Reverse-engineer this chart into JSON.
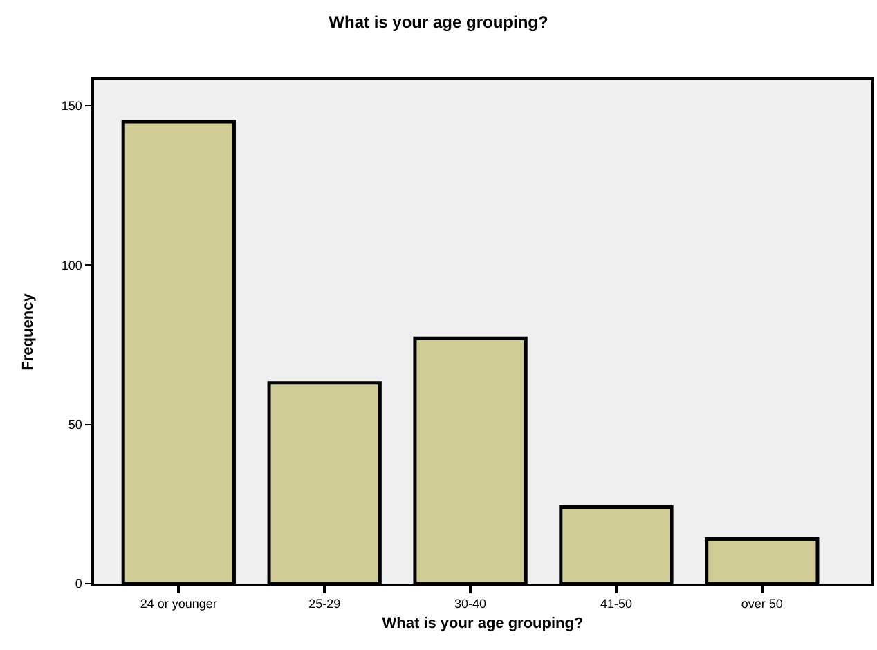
{
  "chart_data": {
    "type": "bar",
    "title": "What is your age grouping?",
    "xlabel": "What is your age grouping?",
    "ylabel": "Frequency",
    "categories": [
      "24 or younger",
      "25-29",
      "30-40",
      "41-50",
      "over 50"
    ],
    "values": [
      145,
      63,
      77,
      24,
      14
    ],
    "color": "#d1cc96",
    "ylim": [
      0,
      158
    ],
    "yticks": [
      0,
      50,
      100,
      150
    ],
    "grid": false
  }
}
